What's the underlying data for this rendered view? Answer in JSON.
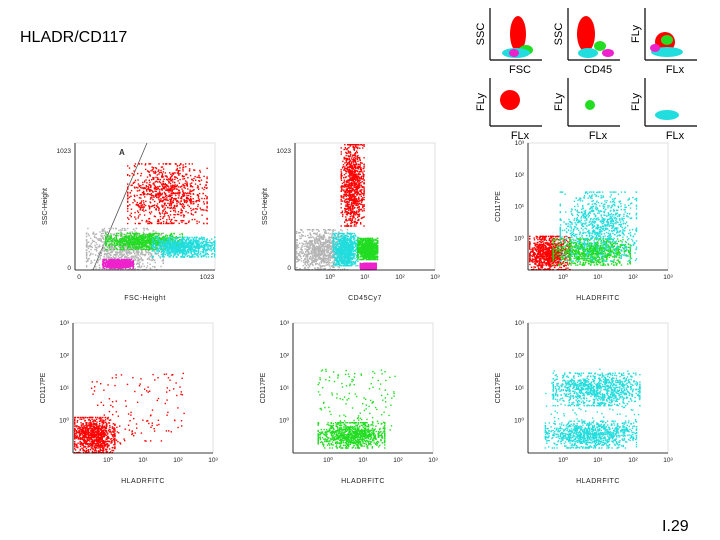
{
  "slide": {
    "title": "HLADR/CD117",
    "page_number": "I.29"
  },
  "colors": {
    "red": "#ff0000",
    "green": "#22dd22",
    "cyan": "#22dddd",
    "magenta": "#ee22cc",
    "grey": "#b4b4b4",
    "axis": "#000000"
  },
  "legend_panels": [
    {
      "ylabel": "SSC",
      "xlabel": "FSC",
      "populations": [
        "red",
        "green",
        "cyan",
        "magenta"
      ]
    },
    {
      "ylabel": "SSC",
      "xlabel": "CD45",
      "populations": [
        "red",
        "green",
        "cyan",
        "magenta"
      ]
    },
    {
      "ylabel": "FLy",
      "xlabel": "FLx",
      "populations": [
        "red",
        "green",
        "cyan",
        "magenta"
      ]
    },
    {
      "ylabel": "FLy",
      "xlabel": "FLx",
      "populations": [
        "red"
      ]
    },
    {
      "ylabel": "FLy",
      "xlabel": "FLx",
      "populations": [
        "green"
      ]
    },
    {
      "ylabel": "FLy",
      "xlabel": "FLx",
      "populations": [
        "cyan"
      ]
    }
  ],
  "chart_data": [
    {
      "type": "scatter",
      "xlabel": "FSC-Height",
      "ylabel": "SSC-Height",
      "x_scale": "linear",
      "x_ticks": [
        "0",
        "1023"
      ],
      "y_ticks": [
        "0",
        "1023"
      ],
      "gate_label": "A",
      "populations": [
        {
          "color": "grey",
          "x_range": [
            80,
            640
          ],
          "y_range": [
            0,
            340
          ]
        },
        {
          "color": "red",
          "x_range": [
            380,
            960
          ],
          "y_range": [
            380,
            860
          ]
        },
        {
          "color": "green",
          "x_range": [
            220,
            780
          ],
          "y_range": [
            170,
            300
          ]
        },
        {
          "color": "cyan",
          "x_range": [
            560,
            1023
          ],
          "y_range": [
            110,
            270
          ]
        },
        {
          "color": "magenta",
          "x_range": [
            200,
            420
          ],
          "y_range": [
            20,
            90
          ]
        }
      ]
    },
    {
      "type": "scatter",
      "xlabel": "CD45Cy7",
      "ylabel": "SSC-Height",
      "x_scale": "log",
      "x_ticks": [
        "10⁰",
        "10¹",
        "10²",
        "10³"
      ],
      "y_ticks": [
        "0",
        "1023"
      ],
      "populations": [
        {
          "color": "grey",
          "x_range": [
            0.1,
            3
          ],
          "y_range": [
            0,
            330
          ]
        },
        {
          "color": "red",
          "x_range": [
            2,
            9
          ],
          "y_range": [
            360,
            1023
          ]
        },
        {
          "color": "cyan",
          "x_range": [
            1.2,
            6
          ],
          "y_range": [
            40,
            300
          ]
        },
        {
          "color": "green",
          "x_range": [
            6,
            22
          ],
          "y_range": [
            90,
            260
          ]
        },
        {
          "color": "magenta",
          "x_range": [
            7,
            20
          ],
          "y_range": [
            10,
            60
          ]
        }
      ]
    },
    {
      "type": "scatter",
      "xlabel": "HLADRFITC",
      "ylabel": "CD117PE",
      "x_scale": "log",
      "y_scale": "log",
      "x_ticks": [
        "10⁰",
        "10¹",
        "10²",
        "10³"
      ],
      "y_ticks": [
        "10⁰",
        "10¹",
        "10²",
        "10³"
      ],
      "populations": [
        {
          "color": "red",
          "x_range": [
            0.1,
            1.5
          ],
          "y_range": [
            0.1,
            1.2
          ]
        },
        {
          "color": "green",
          "x_range": [
            0.5,
            80
          ],
          "y_range": [
            0.15,
            1
          ]
        },
        {
          "color": "cyan",
          "x_range": [
            0.8,
            120
          ],
          "y_range": [
            0.2,
            30
          ]
        }
      ]
    },
    {
      "type": "scatter",
      "xlabel": "HLADRFITC",
      "ylabel": "CD117PE",
      "x_scale": "log",
      "y_scale": "log",
      "x_ticks": [
        "10⁰",
        "10¹",
        "10²",
        "10³"
      ],
      "y_ticks": [
        "10⁰",
        "10¹",
        "10²",
        "10³"
      ],
      "populations": [
        {
          "color": "red",
          "x_range": [
            0.1,
            1.5
          ],
          "y_range": [
            0.1,
            1.3
          ]
        },
        {
          "color": "red",
          "x_range": [
            0.3,
            150
          ],
          "y_range": [
            0.2,
            30
          ],
          "sparse": true
        }
      ]
    },
    {
      "type": "scatter",
      "xlabel": "HLADRFITC",
      "ylabel": "CD117PE",
      "x_scale": "log",
      "y_scale": "log",
      "x_ticks": [
        "10⁰",
        "10¹",
        "10²",
        "10³"
      ],
      "y_ticks": [
        "10⁰",
        "10¹",
        "10²",
        "10³"
      ],
      "populations": [
        {
          "color": "green",
          "x_range": [
            0.5,
            40
          ],
          "y_range": [
            0.15,
            0.9
          ]
        },
        {
          "color": "green",
          "x_range": [
            0.5,
            80
          ],
          "y_range": [
            0.5,
            40
          ],
          "sparse": true
        }
      ]
    },
    {
      "type": "scatter",
      "xlabel": "HLADRFITC",
      "ylabel": "CD117PE",
      "x_scale": "log",
      "y_scale": "log",
      "x_ticks": [
        "10⁰",
        "10¹",
        "10²",
        "10³"
      ],
      "y_ticks": [
        "10⁰",
        "10¹",
        "10²",
        "10³"
      ],
      "populations": [
        {
          "color": "cyan",
          "x_range": [
            0.3,
            120
          ],
          "y_range": [
            0.15,
            1.0
          ]
        },
        {
          "color": "cyan",
          "x_range": [
            0.5,
            150
          ],
          "y_range": [
            3,
            30
          ]
        },
        {
          "color": "cyan",
          "x_range": [
            0.3,
            150
          ],
          "y_range": [
            0.2,
            40
          ],
          "sparse": true
        }
      ]
    }
  ]
}
